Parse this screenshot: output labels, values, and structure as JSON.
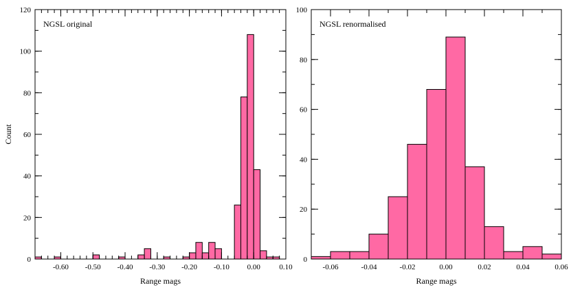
{
  "chart_data": [
    {
      "type": "bar",
      "title": "NGSL original",
      "xlabel": "Range  mags",
      "ylabel": "Count",
      "xlim": [
        -0.68,
        0.1
      ],
      "ylim": [
        0,
        120
      ],
      "bin_width": 0.02,
      "bins": [
        {
          "x0": -0.68,
          "count": 1
        },
        {
          "x0": -0.62,
          "count": 1
        },
        {
          "x0": -0.5,
          "count": 2
        },
        {
          "x0": -0.42,
          "count": 1
        },
        {
          "x0": -0.36,
          "count": 2
        },
        {
          "x0": -0.34,
          "count": 5
        },
        {
          "x0": -0.28,
          "count": 1
        },
        {
          "x0": -0.22,
          "count": 1
        },
        {
          "x0": -0.2,
          "count": 3
        },
        {
          "x0": -0.18,
          "count": 8
        },
        {
          "x0": -0.16,
          "count": 3
        },
        {
          "x0": -0.14,
          "count": 8
        },
        {
          "x0": -0.12,
          "count": 5
        },
        {
          "x0": -0.1,
          "count": 0
        },
        {
          "x0": -0.08,
          "count": 0
        },
        {
          "x0": -0.06,
          "count": 26
        },
        {
          "x0": -0.04,
          "count": 78
        },
        {
          "x0": -0.02,
          "count": 108
        },
        {
          "x0": 0.0,
          "count": 43
        },
        {
          "x0": 0.02,
          "count": 4
        },
        {
          "x0": 0.04,
          "count": 1
        },
        {
          "x0": 0.06,
          "count": 1
        }
      ],
      "x_ticks": [
        -0.6,
        -0.5,
        -0.4,
        -0.3,
        -0.2,
        -0.1,
        0.0,
        0.1
      ],
      "x_tick_labels": [
        "-0.60",
        "-0.50",
        "-0.40",
        "-0.30",
        "-0.20",
        "-0.10",
        "0.00",
        "0.10"
      ],
      "x_minor_step": 0.02,
      "y_ticks": [
        0,
        20,
        40,
        60,
        80,
        100,
        120
      ],
      "y_tick_labels": [
        "0",
        "20",
        "40",
        "60",
        "80",
        "100",
        "120"
      ],
      "y_minor_step": 10,
      "bar_color": "#ff69a4"
    },
    {
      "type": "bar",
      "title": "NGSL renormalised",
      "xlabel": "Range  mags",
      "ylabel": "",
      "xlim": [
        -0.07,
        0.06
      ],
      "ylim": [
        0,
        100
      ],
      "bin_width": 0.01,
      "bins": [
        {
          "x0": -0.07,
          "count": 1
        },
        {
          "x0": -0.06,
          "count": 3
        },
        {
          "x0": -0.05,
          "count": 3
        },
        {
          "x0": -0.04,
          "count": 10
        },
        {
          "x0": -0.03,
          "count": 25
        },
        {
          "x0": -0.02,
          "count": 46
        },
        {
          "x0": -0.01,
          "count": 68
        },
        {
          "x0": 0.0,
          "count": 89
        },
        {
          "x0": 0.01,
          "count": 37
        },
        {
          "x0": 0.02,
          "count": 13
        },
        {
          "x0": 0.03,
          "count": 3
        },
        {
          "x0": 0.04,
          "count": 5
        },
        {
          "x0": 0.05,
          "count": 2
        }
      ],
      "x_ticks": [
        -0.06,
        -0.04,
        -0.02,
        0.0,
        0.02,
        0.04,
        0.06
      ],
      "x_tick_labels": [
        "-0.06",
        "-0.04",
        "-0.02",
        "0.00",
        "0.02",
        "0.04",
        "0.06"
      ],
      "x_minor_step": 0.01,
      "y_ticks": [
        0,
        20,
        40,
        60,
        80,
        100
      ],
      "y_tick_labels": [
        "0",
        "20",
        "40",
        "60",
        "80",
        "100"
      ],
      "y_minor_step": 10,
      "bar_color": "#ff69a4"
    }
  ]
}
